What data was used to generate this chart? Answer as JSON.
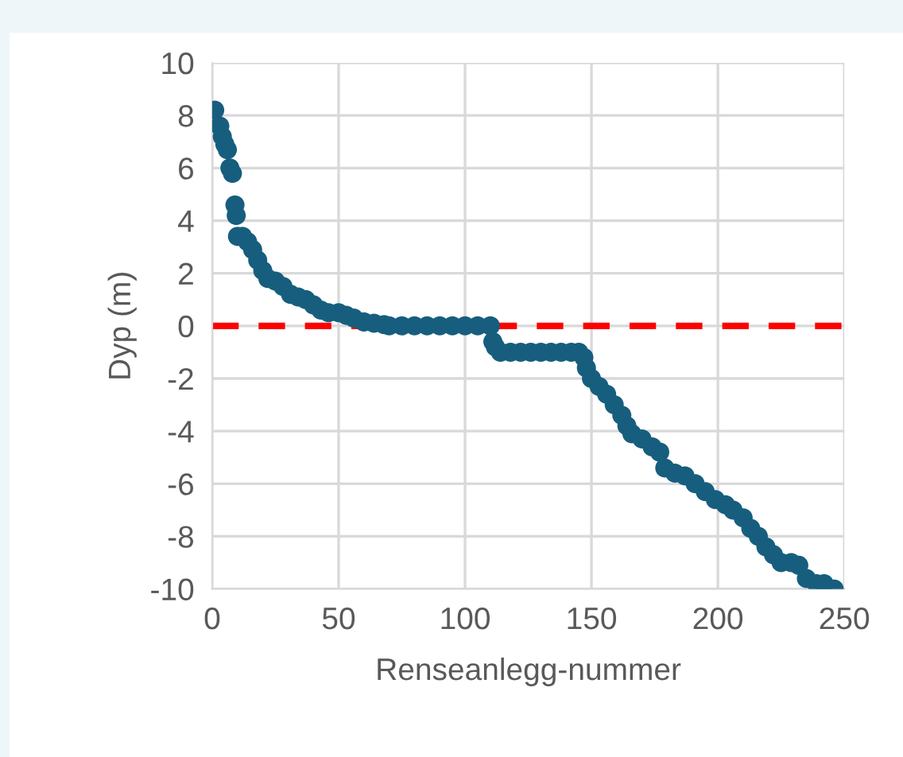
{
  "chart_data": {
    "type": "scatter",
    "xlabel": "Renseanlegg-nummer",
    "ylabel": "Dyp (m)",
    "xlim": [
      0,
      250
    ],
    "xticks": [
      0,
      50,
      100,
      150,
      200,
      250
    ],
    "ylim": [
      -10,
      10
    ],
    "yticks": [
      -10,
      -8,
      -6,
      -4,
      -2,
      0,
      2,
      4,
      6,
      8,
      10
    ],
    "grid": true,
    "marker": "circle",
    "x": [
      1,
      3,
      4,
      5,
      6,
      7,
      8,
      9,
      9.5,
      10,
      12,
      14,
      16,
      18,
      20,
      22,
      25,
      28,
      31,
      34,
      37,
      40,
      43,
      46,
      50,
      53,
      56,
      60,
      64,
      68,
      70,
      75,
      80,
      85,
      90,
      95,
      100,
      105,
      110,
      111,
      112,
      114,
      118,
      122,
      126,
      130,
      134,
      138,
      142,
      145,
      147,
      148,
      150,
      153,
      156,
      159,
      162,
      164,
      166,
      170,
      174,
      177,
      179,
      183,
      187,
      191,
      195,
      199,
      203,
      206,
      210,
      213,
      216,
      219,
      222,
      225,
      229,
      232,
      235,
      239,
      242,
      246
    ],
    "series": [
      {
        "color": "#175e7e",
        "values": [
          8.2,
          7.6,
          7.2,
          6.9,
          6.7,
          6.0,
          5.8,
          4.6,
          4.2,
          3.4,
          3.4,
          3.2,
          2.9,
          2.5,
          2.1,
          1.8,
          1.7,
          1.5,
          1.2,
          1.1,
          1.0,
          0.8,
          0.6,
          0.5,
          0.5,
          0.4,
          0.3,
          0.15,
          0.1,
          0.05,
          0,
          0,
          0,
          0,
          0,
          0,
          0,
          0,
          0,
          -0.6,
          -0.8,
          -1.0,
          -1.0,
          -1.0,
          -1.0,
          -1.0,
          -1.0,
          -1.0,
          -1.0,
          -1.0,
          -1.2,
          -1.6,
          -2.0,
          -2.3,
          -2.6,
          -3.0,
          -3.4,
          -3.8,
          -4.1,
          -4.3,
          -4.6,
          -4.8,
          -5.4,
          -5.6,
          -5.7,
          -6.0,
          -6.3,
          -6.6,
          -6.8,
          -7.0,
          -7.3,
          -7.7,
          -8.0,
          -8.4,
          -8.7,
          -9.0,
          -9.0,
          -9.1,
          -9.6,
          -9.8,
          -9.8,
          -10.0
        ]
      }
    ],
    "ref_lines": [
      {
        "axis": "y",
        "value": 0,
        "color": "#ff0000",
        "line_style": "dashed"
      }
    ]
  }
}
